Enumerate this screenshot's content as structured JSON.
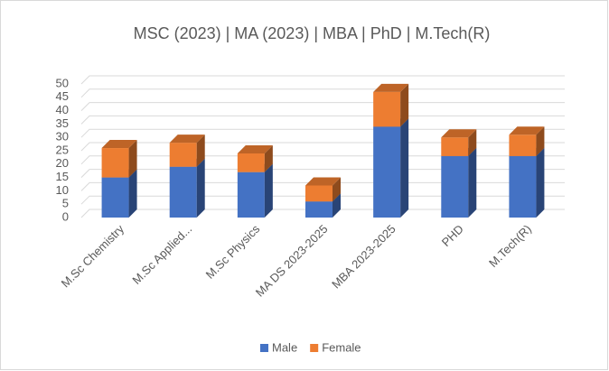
{
  "chart_data": {
    "type": "bar3d_stacked",
    "title": "MSC (2023) | MA (2023) | MBA | PhD | M.Tech(R)",
    "categories": [
      "M.Sc Chemistry",
      "M.Sc Applied...",
      "M.Sc Physics",
      "MA DS 2023-2025",
      "MBA 2023-2025",
      "PHD",
      "M.Tech(R)"
    ],
    "series": [
      {
        "name": "Male",
        "color": "#4472c4",
        "values": [
          15,
          19,
          17,
          6,
          34,
          23,
          23
        ]
      },
      {
        "name": "Female",
        "color": "#ed7d31",
        "values": [
          11,
          9,
          7,
          6,
          13,
          7,
          8
        ]
      }
    ],
    "ylim": [
      0,
      50
    ],
    "yticks": [
      0,
      5,
      10,
      15,
      20,
      25,
      30,
      35,
      40,
      45,
      50
    ],
    "grid": true,
    "legend": "bottom"
  }
}
